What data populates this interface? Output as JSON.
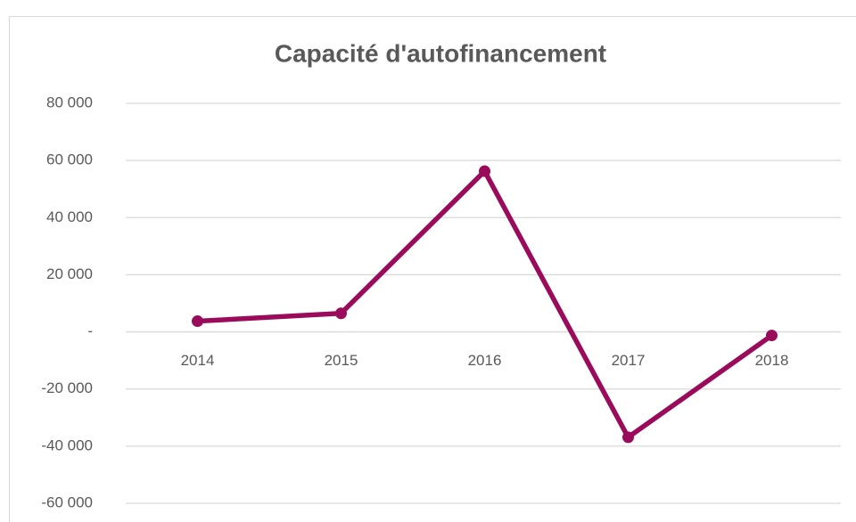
{
  "chart_data": {
    "type": "line",
    "title": "Capacité d'autofinancement",
    "categories": [
      "2014",
      "2015",
      "2016",
      "2017",
      "2018"
    ],
    "values": [
      3750,
      6500,
      56250,
      -36900,
      -1250
    ],
    "color": "#9b0b5b",
    "ylim": [
      -60000,
      80000
    ],
    "yticks": [
      {
        "value": -60000,
        "label": "-60 000"
      },
      {
        "value": -40000,
        "label": "-40 000"
      },
      {
        "value": -20000,
        "label": "-20 000"
      },
      {
        "value": 0,
        "label": "-"
      },
      {
        "value": 20000,
        "label": "20 000"
      },
      {
        "value": 40000,
        "label": "40 000"
      },
      {
        "value": 60000,
        "label": "60 000"
      },
      {
        "value": 80000,
        "label": "80 000"
      }
    ],
    "grid": true
  }
}
